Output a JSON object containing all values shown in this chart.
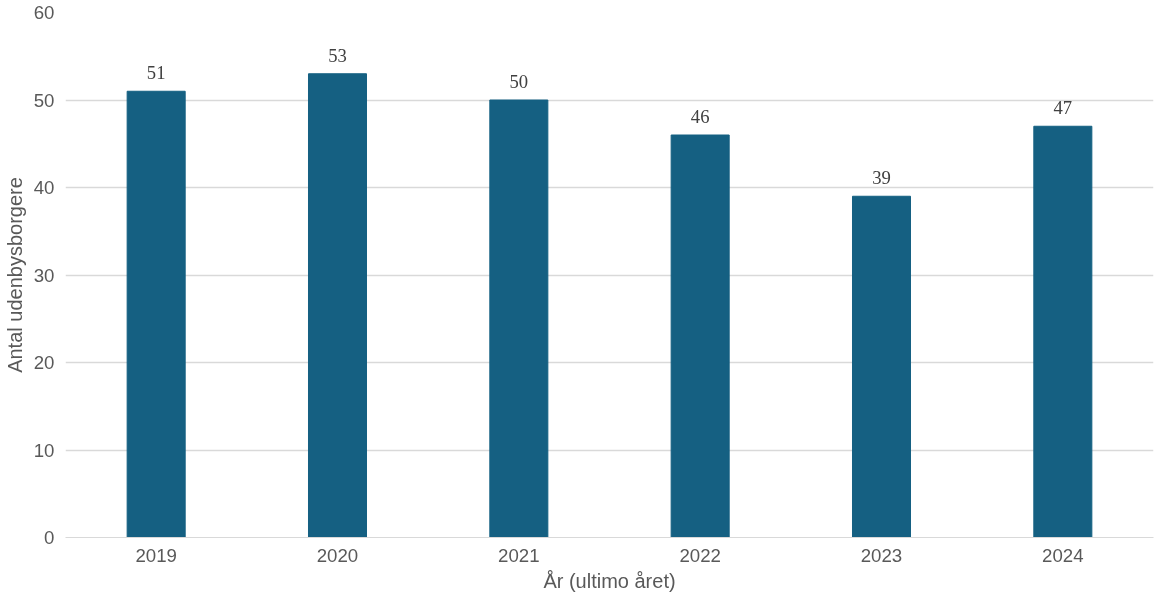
{
  "chart_data": {
    "type": "bar",
    "xlabel": "År (ultimo året)",
    "ylabel": "Antal udenbysborgere",
    "categories": [
      "2019",
      "2020",
      "2021",
      "2022",
      "2023",
      "2024"
    ],
    "values": [
      51,
      53,
      50,
      46,
      39,
      47
    ],
    "color": "#156082",
    "ylim": [
      0,
      60
    ],
    "yticks": [
      0,
      10,
      20,
      30,
      40,
      50,
      60
    ],
    "grid": "y",
    "data_labels": true
  }
}
